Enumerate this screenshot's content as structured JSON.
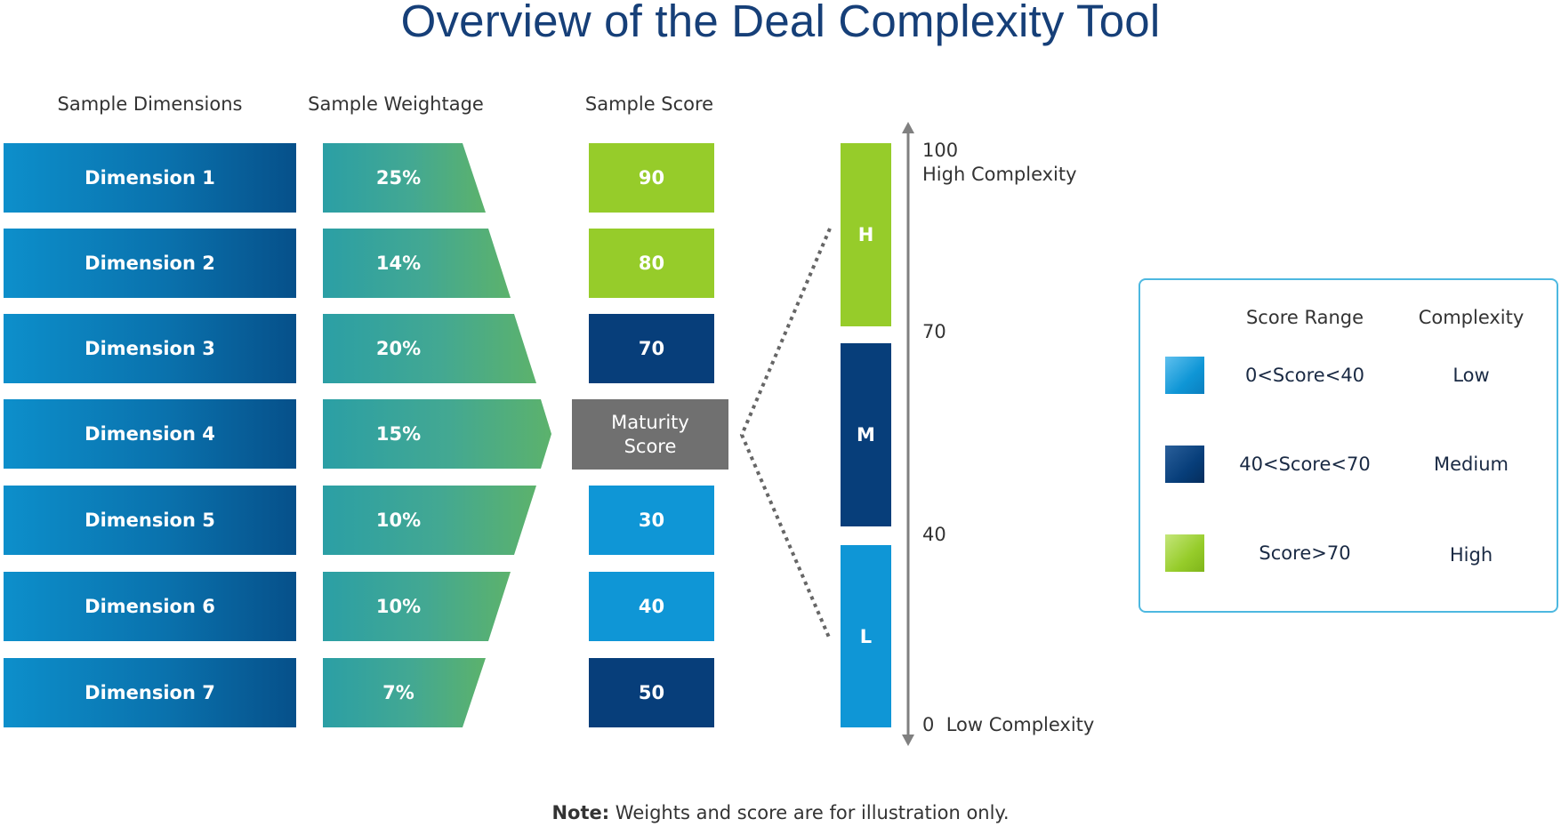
{
  "title": "Overview of the Deal Complexity Tool",
  "columns": {
    "dimensions": "Sample Dimensions",
    "weightage": "Sample Weightage",
    "score": "Sample Score"
  },
  "rows": [
    {
      "dimension": "Dimension 1",
      "weight": "25%",
      "score": "90"
    },
    {
      "dimension": "Dimension 2",
      "weight": "14%",
      "score": "80"
    },
    {
      "dimension": "Dimension 3",
      "weight": "20%",
      "score": "70"
    },
    {
      "dimension": "Dimension 4",
      "weight": "15%",
      "score": "Maturity Score"
    },
    {
      "dimension": "Dimension 5",
      "weight": "10%",
      "score": "30"
    },
    {
      "dimension": "Dimension 6",
      "weight": "10%",
      "score": "40"
    },
    {
      "dimension": "Dimension 7",
      "weight": "7%",
      "score": "50"
    }
  ],
  "maturity": {
    "line1": "Maturity",
    "line2": "Score"
  },
  "levels": {
    "high": "H",
    "medium": "M",
    "low": "L"
  },
  "scale": {
    "top_value": "100",
    "top_label": "High Complexity",
    "mark_70": "70",
    "mark_40": "40",
    "bottom": "0  Low Complexity"
  },
  "legend": {
    "header_range": "Score Range",
    "header_complexity": "Complexity",
    "items": [
      {
        "range": "0<Score<40",
        "complexity": "Low"
      },
      {
        "range": "40<Score<70",
        "complexity": "Medium"
      },
      {
        "range": "Score>70",
        "complexity": "High"
      }
    ]
  },
  "note": {
    "label": "Note:",
    "text": " Weights and score are for illustration only."
  },
  "colors": {
    "title": "#163f78",
    "low": "#0f96d6",
    "medium": "#073e7a",
    "high": "#96cc2a",
    "maturity": "#707070"
  }
}
